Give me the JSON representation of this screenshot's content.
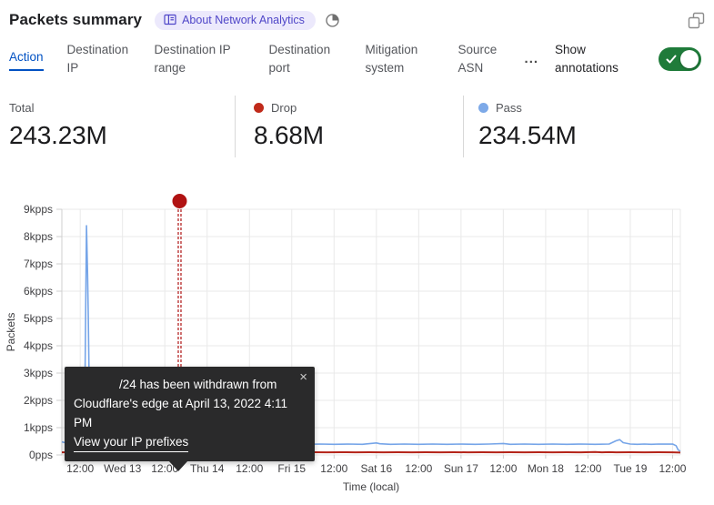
{
  "colors": {
    "accent": "#0051c3",
    "toggle_green": "#1f7b3a",
    "drop": "#b9301c",
    "pass": "#7da9e8",
    "annotation_red": "#b01212",
    "grid": "#e9e9e9",
    "axis": "#cfcfcf",
    "tick_text": "#3f3f42"
  },
  "header": {
    "title": "Packets summary",
    "badge_label": "About Network Analytics"
  },
  "tabs": {
    "items": [
      {
        "label": "Action",
        "active": true
      },
      {
        "label": "Destination IP",
        "active": false
      },
      {
        "label": "Destination IP range",
        "active": false
      },
      {
        "label": "Destination port",
        "active": false
      },
      {
        "label": "Mitigation system",
        "active": false
      },
      {
        "label": "Source ASN",
        "active": false
      }
    ],
    "more_label": "...",
    "annotations_label": "Show annotations",
    "annotations_toggle_on": true
  },
  "stats": [
    {
      "label": "Total",
      "value": "243.23M",
      "dot_color": ""
    },
    {
      "label": "Drop",
      "value": "8.68M",
      "dot_color": "#c02a1a"
    },
    {
      "label": "Pass",
      "value": "234.54M",
      "dot_color": "#7da9e8"
    }
  ],
  "tooltip": {
    "line1": "/24 has been withdrawn from",
    "line2": "Cloudflare's edge at April 13, 2022 4:11 PM",
    "link": "View your IP prefixes",
    "close": "×"
  },
  "chart_data": {
    "type": "line",
    "title": "Packets summary over time",
    "xlabel": "Time (local)",
    "ylabel": "Packets",
    "x_unit": "hours since 2022-04-12 12:00",
    "xlim": [
      -5.2,
      170.2
    ],
    "ylim": [
      0,
      9000
    ],
    "grid": true,
    "x_ticks": [
      {
        "h": 0,
        "label": "12:00"
      },
      {
        "h": 12,
        "label": "Wed 13"
      },
      {
        "h": 24,
        "label": "12:00"
      },
      {
        "h": 36,
        "label": "Thu 14"
      },
      {
        "h": 48,
        "label": "12:00"
      },
      {
        "h": 60,
        "label": "Fri 15"
      },
      {
        "h": 72,
        "label": "12:00"
      },
      {
        "h": 84,
        "label": "Sat 16"
      },
      {
        "h": 96,
        "label": "12:00"
      },
      {
        "h": 108,
        "label": "Sun 17"
      },
      {
        "h": 120,
        "label": "12:00"
      },
      {
        "h": 132,
        "label": "Mon 18"
      },
      {
        "h": 144,
        "label": "12:00"
      },
      {
        "h": 156,
        "label": "Tue 19"
      },
      {
        "h": 168,
        "label": "12:00"
      }
    ],
    "y_ticks": [
      {
        "v": 0,
        "label": "0pps"
      },
      {
        "v": 1000,
        "label": "1kpps"
      },
      {
        "v": 2000,
        "label": "2kpps"
      },
      {
        "v": 3000,
        "label": "3kpps"
      },
      {
        "v": 4000,
        "label": "4kpps"
      },
      {
        "v": 5000,
        "label": "5kpps"
      },
      {
        "v": 6000,
        "label": "6kpps"
      },
      {
        "v": 7000,
        "label": "7kpps"
      },
      {
        "v": 8000,
        "label": "8kpps"
      },
      {
        "v": 9000,
        "label": "9kpps"
      }
    ],
    "series": [
      {
        "name": "Pass",
        "color": "#76a5e8",
        "width": 1.6,
        "points": [
          [
            -5.2,
            480
          ],
          [
            -4,
            440
          ],
          [
            -3,
            460
          ],
          [
            -2,
            430
          ],
          [
            -1,
            450
          ],
          [
            0,
            430
          ],
          [
            0.6,
            420
          ],
          [
            1.0,
            700
          ],
          [
            1.4,
            3200
          ],
          [
            1.8,
            8400
          ],
          [
            2.1,
            6600
          ],
          [
            2.3,
            5000
          ],
          [
            2.6,
            2200
          ],
          [
            3.0,
            1000
          ],
          [
            3.5,
            640
          ],
          [
            4.2,
            500
          ],
          [
            5,
            440
          ],
          [
            6,
            410
          ],
          [
            8,
            390
          ],
          [
            10,
            400
          ],
          [
            12,
            390
          ],
          [
            14,
            400
          ],
          [
            16,
            480
          ],
          [
            17,
            510
          ],
          [
            18,
            420
          ],
          [
            20,
            390
          ],
          [
            22,
            400
          ],
          [
            24,
            390
          ],
          [
            26,
            400
          ],
          [
            28,
            410
          ],
          [
            30,
            390
          ],
          [
            32,
            400
          ],
          [
            34,
            390
          ],
          [
            36,
            400
          ],
          [
            38,
            390
          ],
          [
            40,
            410
          ],
          [
            41,
            440
          ],
          [
            42,
            400
          ],
          [
            44,
            390
          ],
          [
            46,
            400
          ],
          [
            48,
            410
          ],
          [
            50,
            470
          ],
          [
            51,
            430
          ],
          [
            52,
            400
          ],
          [
            56,
            390
          ],
          [
            60,
            400
          ],
          [
            64,
            390
          ],
          [
            68,
            400
          ],
          [
            72,
            390
          ],
          [
            76,
            400
          ],
          [
            80,
            390
          ],
          [
            84,
            440
          ],
          [
            85,
            410
          ],
          [
            88,
            390
          ],
          [
            92,
            400
          ],
          [
            96,
            390
          ],
          [
            100,
            400
          ],
          [
            104,
            390
          ],
          [
            108,
            400
          ],
          [
            112,
            390
          ],
          [
            116,
            400
          ],
          [
            120,
            420
          ],
          [
            122,
            390
          ],
          [
            126,
            400
          ],
          [
            130,
            390
          ],
          [
            134,
            400
          ],
          [
            138,
            390
          ],
          [
            142,
            400
          ],
          [
            146,
            390
          ],
          [
            150,
            400
          ],
          [
            152,
            520
          ],
          [
            153,
            560
          ],
          [
            154,
            450
          ],
          [
            156,
            400
          ],
          [
            158,
            390
          ],
          [
            160,
            400
          ],
          [
            162,
            390
          ],
          [
            164,
            400
          ],
          [
            166,
            395
          ],
          [
            168,
            400
          ],
          [
            169,
            340
          ],
          [
            169.6,
            180
          ],
          [
            170.2,
            140
          ]
        ]
      },
      {
        "name": "Drop",
        "color": "#b42318",
        "width": 2,
        "points": [
          [
            -5.2,
            95
          ],
          [
            0,
            100
          ],
          [
            4,
            95
          ],
          [
            8,
            100
          ],
          [
            12,
            95
          ],
          [
            16,
            105
          ],
          [
            20,
            95
          ],
          [
            24,
            100
          ],
          [
            28,
            95
          ],
          [
            32,
            100
          ],
          [
            36,
            95
          ],
          [
            40,
            110
          ],
          [
            40.8,
            300
          ],
          [
            41.2,
            360
          ],
          [
            41.6,
            180
          ],
          [
            42,
            110
          ],
          [
            44,
            100
          ],
          [
            46,
            95
          ],
          [
            48,
            120
          ],
          [
            50,
            100
          ],
          [
            54,
            95
          ],
          [
            58,
            100
          ],
          [
            62,
            95
          ],
          [
            66,
            100
          ],
          [
            70,
            95
          ],
          [
            74,
            100
          ],
          [
            78,
            95
          ],
          [
            82,
            100
          ],
          [
            86,
            95
          ],
          [
            90,
            100
          ],
          [
            94,
            95
          ],
          [
            98,
            100
          ],
          [
            102,
            95
          ],
          [
            106,
            100
          ],
          [
            110,
            95
          ],
          [
            114,
            100
          ],
          [
            118,
            95
          ],
          [
            122,
            100
          ],
          [
            126,
            95
          ],
          [
            130,
            100
          ],
          [
            134,
            95
          ],
          [
            138,
            100
          ],
          [
            142,
            95
          ],
          [
            146,
            110
          ],
          [
            148,
            95
          ],
          [
            150,
            105
          ],
          [
            152,
            95
          ],
          [
            156,
            100
          ],
          [
            160,
            95
          ],
          [
            164,
            100
          ],
          [
            168,
            95
          ],
          [
            170.2,
            85
          ]
        ]
      }
    ],
    "legend": [
      {
        "name": "Drop",
        "color": "#c02a1a"
      },
      {
        "name": "Pass",
        "color": "#7da9e8"
      }
    ],
    "annotation": {
      "h": 28.2,
      "color": "#b01212",
      "style": "dashed-vertical-line-with-dot"
    }
  }
}
